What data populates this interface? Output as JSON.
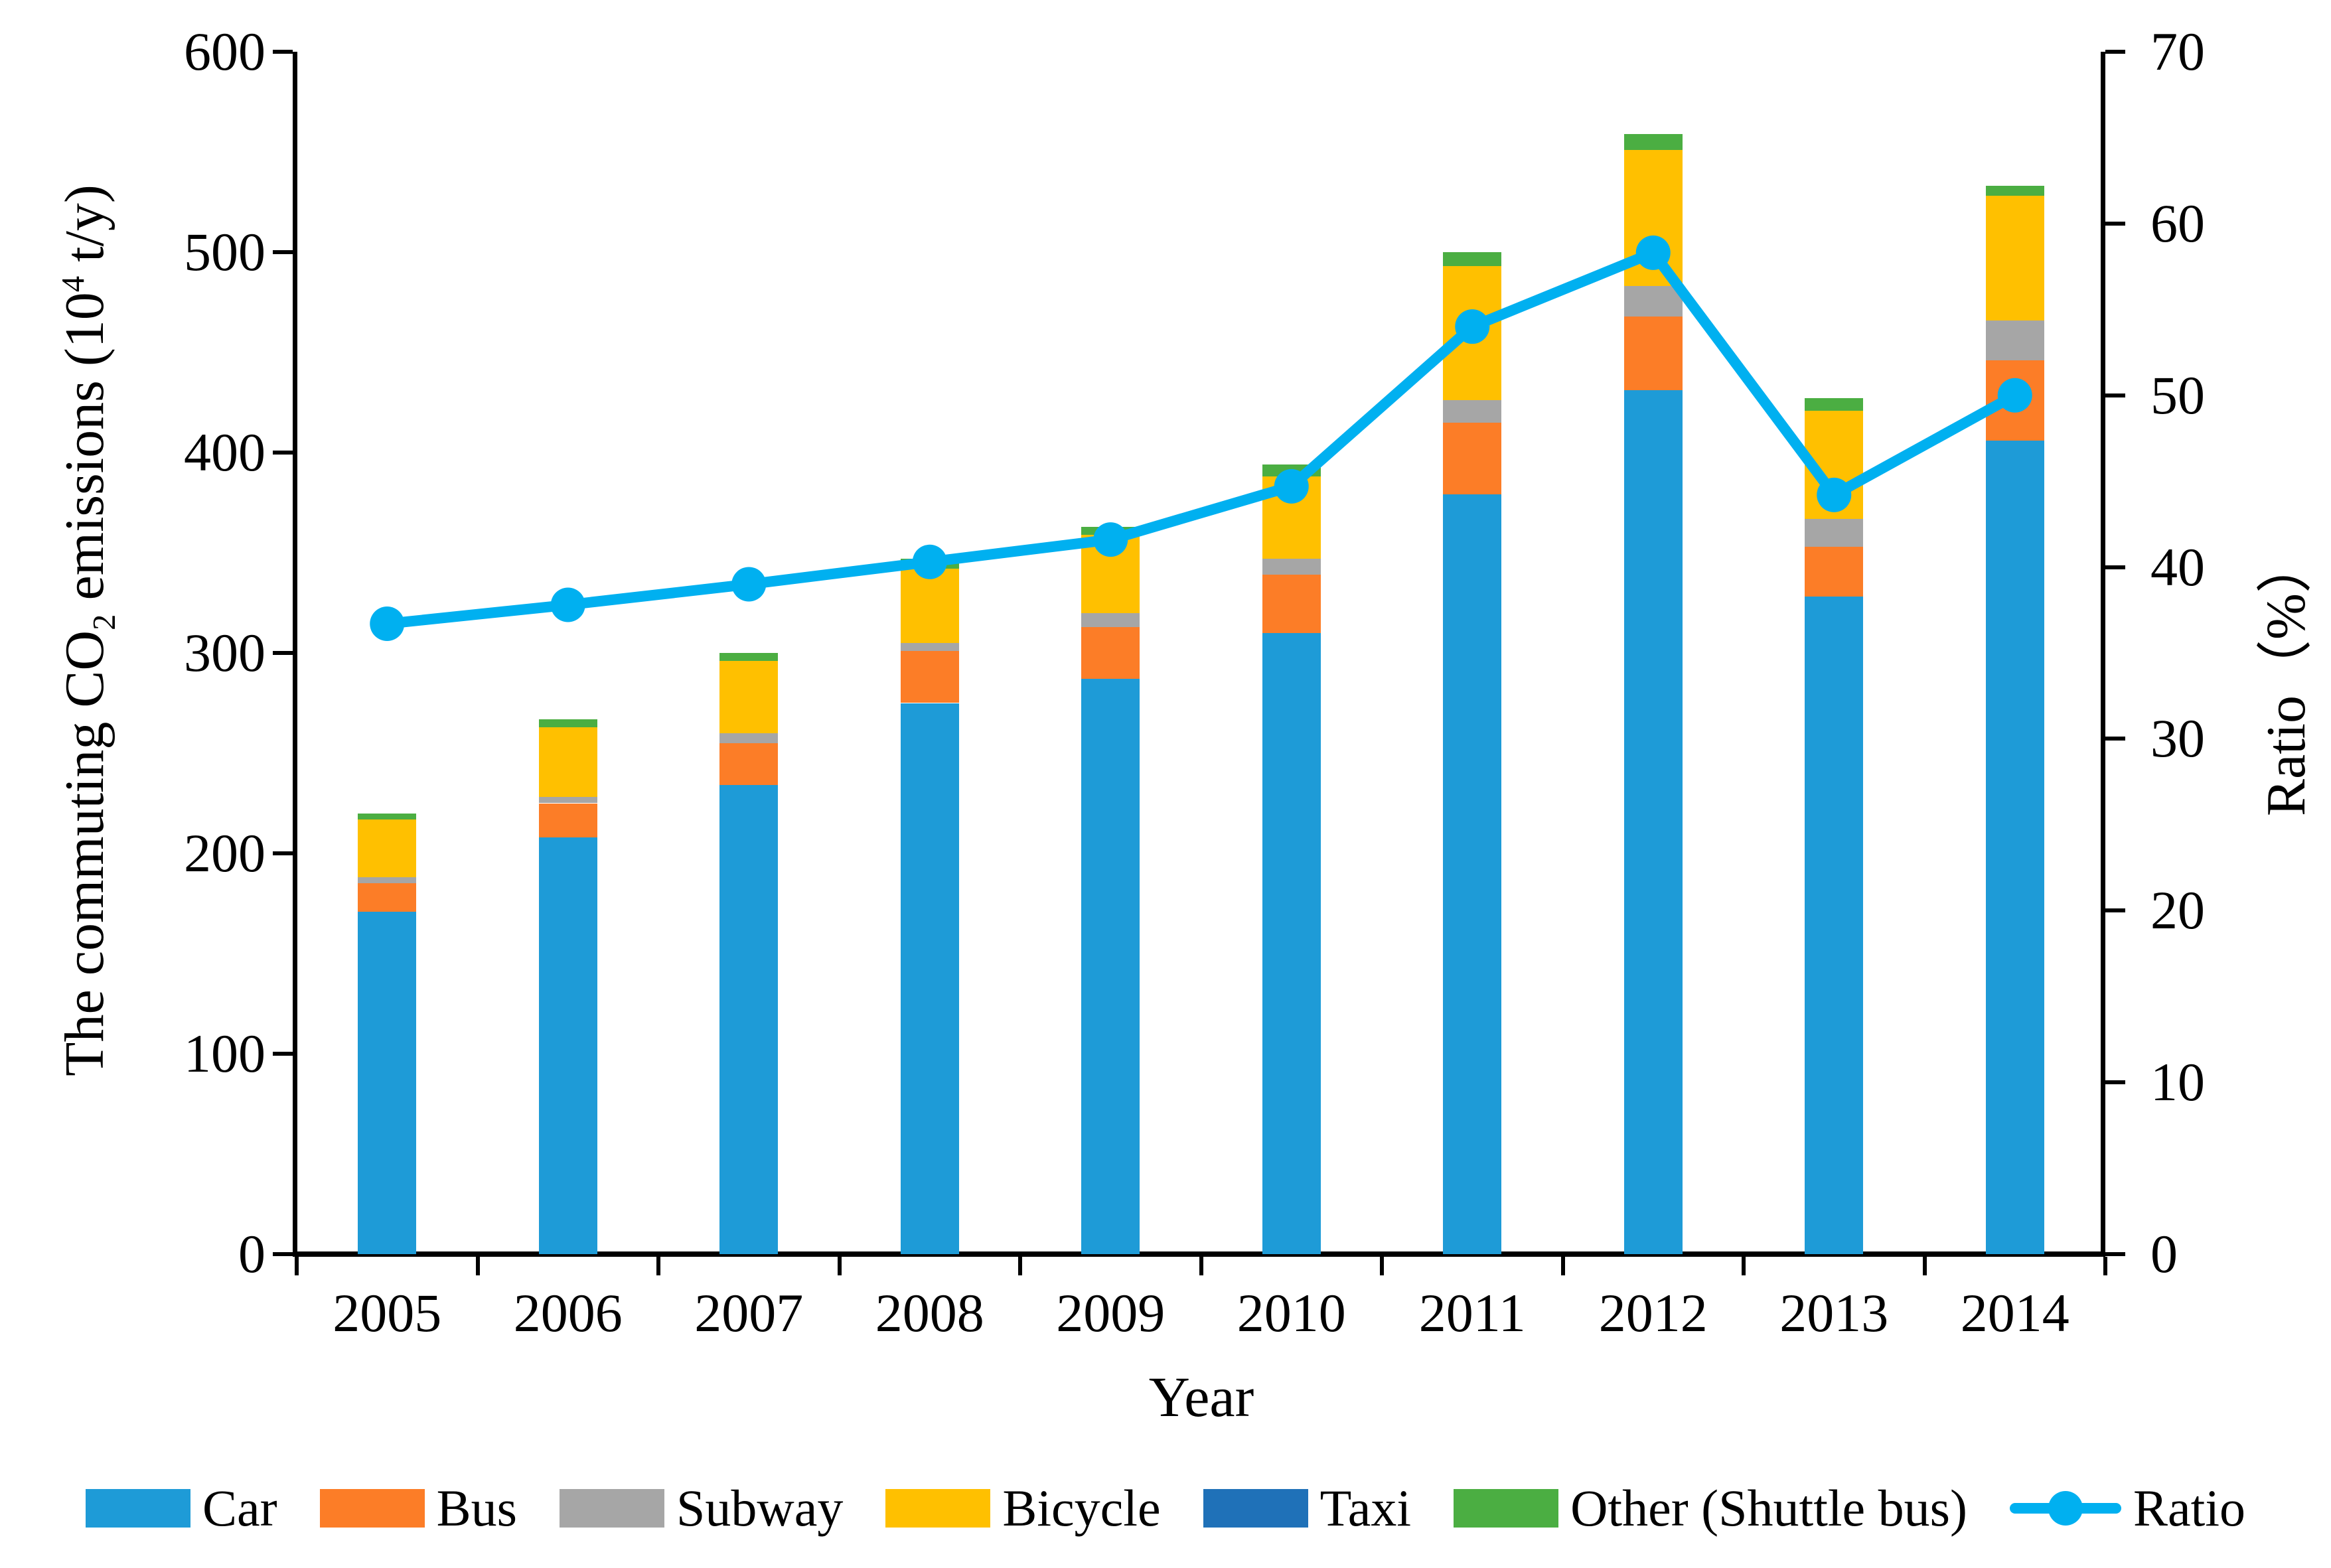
{
  "chart_data": {
    "type": "stacked-bar+line",
    "categories": [
      "2005",
      "2006",
      "2007",
      "2008",
      "2009",
      "2010",
      "2011",
      "2012",
      "2013",
      "2014"
    ],
    "bar_series": [
      {
        "name": "Car",
        "color": "#1E9BD7",
        "values": [
          171,
          208,
          234,
          275,
          287,
          310,
          379,
          431,
          328,
          406
        ]
      },
      {
        "name": "Bus",
        "color": "#FC7D27",
        "values": [
          14,
          17,
          21,
          26,
          26,
          29,
          36,
          37,
          25,
          40
        ]
      },
      {
        "name": "Subway",
        "color": "#A6A6A6",
        "values": [
          3,
          3,
          5,
          4,
          7,
          8,
          11,
          15,
          14,
          20
        ]
      },
      {
        "name": "Bicycle",
        "color": "#FFC000",
        "values": [
          29,
          35,
          36,
          37,
          39,
          41,
          67,
          68,
          54,
          62
        ]
      },
      {
        "name": "Taxi",
        "color": "#1F71B8",
        "values": [
          0,
          0,
          0,
          0,
          0,
          0,
          0,
          0,
          0,
          0
        ]
      },
      {
        "name": "Other (Shuttle bus)",
        "color": "#4BAE42",
        "values": [
          3,
          4,
          4,
          5,
          4,
          6,
          7,
          8,
          6,
          5
        ]
      }
    ],
    "bar_totals": [
      220,
      267,
      300,
      347,
      363,
      394,
      500,
      559,
      427,
      533
    ],
    "line_series": {
      "name": "Ratio",
      "color": "#00B0F0",
      "axis": "right",
      "marker": "circle",
      "values": [
        36.7,
        37.8,
        39.0,
        40.3,
        41.6,
        44.7,
        54.0,
        58.3,
        44.2,
        50.0
      ]
    },
    "left_axis": {
      "title_parts": {
        "p1": "The commuting CO",
        "sub": "2",
        "p2": " emissions (10",
        "sup": "4",
        "p3": " t/y)"
      },
      "min": 0,
      "max": 600,
      "step": 100,
      "tick_labels": [
        "0",
        "100",
        "200",
        "300",
        "400",
        "500",
        "600"
      ]
    },
    "right_axis": {
      "title": "Ratio（%）",
      "min": 0,
      "max": 70,
      "step": 10,
      "tick_labels": [
        "0",
        "10",
        "20",
        "30",
        "40",
        "50",
        "60",
        "70"
      ]
    },
    "x_axis": {
      "title": "Year"
    },
    "legend_position": "bottom",
    "grid": false
  }
}
